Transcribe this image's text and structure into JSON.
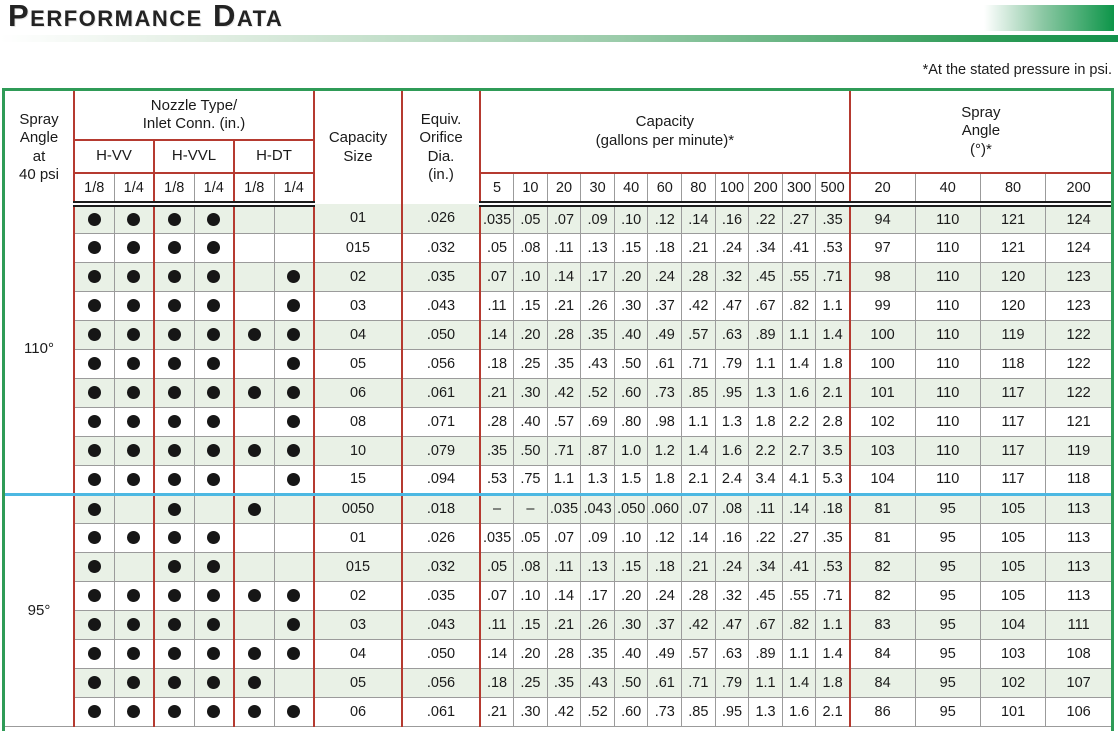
{
  "page": {
    "title": "Performance Data",
    "note": "*At the stated pressure in psi."
  },
  "colors": {
    "accent_green": "#2f9b57",
    "gradient_green": "#0d9549",
    "rule_red": "#b53a30",
    "rule_gray": "#9b9b9b",
    "group_separator_cyan": "#4cb8e2",
    "row_shade_green": "#e9f1e6",
    "header_separator_black": "#1c1c1c"
  },
  "table": {
    "header": {
      "spray_angle": "Spray\nAngle\nat\n40 psi",
      "nozzle_group": "Nozzle Type/\nInlet Conn. (in.)",
      "nozzle_types": [
        "H-VV",
        "H-VVL",
        "H-DT"
      ],
      "inlet_sizes": [
        "1/8",
        "1/4"
      ],
      "capacity_size": "Capacity\nSize",
      "orifice": "Equiv.\nOrifice\nDia.\n(in.)",
      "capacity_group": "Capacity\n(gallons per minute)*",
      "spray_angle_group": "Spray\nAngle\n(°)*",
      "pressures": [
        "5",
        "10",
        "20",
        "30",
        "40",
        "60",
        "80",
        "100",
        "200",
        "300",
        "500"
      ],
      "angle_pressures": [
        "20",
        "40",
        "80",
        "200"
      ]
    },
    "groups": [
      {
        "angle": "110°",
        "rows": [
          {
            "dots": [
              1,
              1,
              1,
              1,
              0,
              0
            ],
            "size": "01",
            "orifice": ".026",
            "capacity": [
              ".035",
              ".05",
              ".07",
              ".09",
              ".10",
              ".12",
              ".14",
              ".16",
              ".22",
              ".27",
              ".35"
            ],
            "angles": [
              "94",
              "110",
              "121",
              "124"
            ]
          },
          {
            "dots": [
              1,
              1,
              1,
              1,
              0,
              0
            ],
            "size": "015",
            "orifice": ".032",
            "capacity": [
              ".05",
              ".08",
              ".11",
              ".13",
              ".15",
              ".18",
              ".21",
              ".24",
              ".34",
              ".41",
              ".53"
            ],
            "angles": [
              "97",
              "110",
              "121",
              "124"
            ]
          },
          {
            "dots": [
              1,
              1,
              1,
              1,
              0,
              1
            ],
            "size": "02",
            "orifice": ".035",
            "capacity": [
              ".07",
              ".10",
              ".14",
              ".17",
              ".20",
              ".24",
              ".28",
              ".32",
              ".45",
              ".55",
              ".71"
            ],
            "angles": [
              "98",
              "110",
              "120",
              "123"
            ]
          },
          {
            "dots": [
              1,
              1,
              1,
              1,
              0,
              1
            ],
            "size": "03",
            "orifice": ".043",
            "capacity": [
              ".11",
              ".15",
              ".21",
              ".26",
              ".30",
              ".37",
              ".42",
              ".47",
              ".67",
              ".82",
              "1.1"
            ],
            "angles": [
              "99",
              "110",
              "120",
              "123"
            ]
          },
          {
            "dots": [
              1,
              1,
              1,
              1,
              1,
              1
            ],
            "size": "04",
            "orifice": ".050",
            "capacity": [
              ".14",
              ".20",
              ".28",
              ".35",
              ".40",
              ".49",
              ".57",
              ".63",
              ".89",
              "1.1",
              "1.4"
            ],
            "angles": [
              "100",
              "110",
              "119",
              "122"
            ]
          },
          {
            "dots": [
              1,
              1,
              1,
              1,
              0,
              1
            ],
            "size": "05",
            "orifice": ".056",
            "capacity": [
              ".18",
              ".25",
              ".35",
              ".43",
              ".50",
              ".61",
              ".71",
              ".79",
              "1.1",
              "1.4",
              "1.8"
            ],
            "angles": [
              "100",
              "110",
              "118",
              "122"
            ]
          },
          {
            "dots": [
              1,
              1,
              1,
              1,
              1,
              1
            ],
            "size": "06",
            "orifice": ".061",
            "capacity": [
              ".21",
              ".30",
              ".42",
              ".52",
              ".60",
              ".73",
              ".85",
              ".95",
              "1.3",
              "1.6",
              "2.1"
            ],
            "angles": [
              "101",
              "110",
              "117",
              "122"
            ]
          },
          {
            "dots": [
              1,
              1,
              1,
              1,
              0,
              1
            ],
            "size": "08",
            "orifice": ".071",
            "capacity": [
              ".28",
              ".40",
              ".57",
              ".69",
              ".80",
              ".98",
              "1.1",
              "1.3",
              "1.8",
              "2.2",
              "2.8"
            ],
            "angles": [
              "102",
              "110",
              "117",
              "121"
            ]
          },
          {
            "dots": [
              1,
              1,
              1,
              1,
              1,
              1
            ],
            "size": "10",
            "orifice": ".079",
            "capacity": [
              ".35",
              ".50",
              ".71",
              ".87",
              "1.0",
              "1.2",
              "1.4",
              "1.6",
              "2.2",
              "2.7",
              "3.5"
            ],
            "angles": [
              "103",
              "110",
              "117",
              "119"
            ]
          },
          {
            "dots": [
              1,
              1,
              1,
              1,
              0,
              1
            ],
            "size": "15",
            "orifice": ".094",
            "capacity": [
              ".53",
              ".75",
              "1.1",
              "1.3",
              "1.5",
              "1.8",
              "2.1",
              "2.4",
              "3.4",
              "4.1",
              "5.3"
            ],
            "angles": [
              "104",
              "110",
              "117",
              "118"
            ]
          }
        ]
      },
      {
        "angle": "95°",
        "rows": [
          {
            "dots": [
              1,
              0,
              1,
              0,
              1,
              0
            ],
            "size": "0050",
            "orifice": ".018",
            "capacity": [
              "–",
              "–",
              ".035",
              ".043",
              ".050",
              ".060",
              ".07",
              ".08",
              ".11",
              ".14",
              ".18"
            ],
            "angles": [
              "81",
              "95",
              "105",
              "113"
            ]
          },
          {
            "dots": [
              1,
              1,
              1,
              1,
              0,
              0
            ],
            "size": "01",
            "orifice": ".026",
            "capacity": [
              ".035",
              ".05",
              ".07",
              ".09",
              ".10",
              ".12",
              ".14",
              ".16",
              ".22",
              ".27",
              ".35"
            ],
            "angles": [
              "81",
              "95",
              "105",
              "113"
            ]
          },
          {
            "dots": [
              1,
              0,
              1,
              1,
              0,
              0
            ],
            "size": "015",
            "orifice": ".032",
            "capacity": [
              ".05",
              ".08",
              ".11",
              ".13",
              ".15",
              ".18",
              ".21",
              ".24",
              ".34",
              ".41",
              ".53"
            ],
            "angles": [
              "82",
              "95",
              "105",
              "113"
            ]
          },
          {
            "dots": [
              1,
              1,
              1,
              1,
              1,
              1
            ],
            "size": "02",
            "orifice": ".035",
            "capacity": [
              ".07",
              ".10",
              ".14",
              ".17",
              ".20",
              ".24",
              ".28",
              ".32",
              ".45",
              ".55",
              ".71"
            ],
            "angles": [
              "82",
              "95",
              "105",
              "113"
            ]
          },
          {
            "dots": [
              1,
              1,
              1,
              1,
              0,
              1
            ],
            "size": "03",
            "orifice": ".043",
            "capacity": [
              ".11",
              ".15",
              ".21",
              ".26",
              ".30",
              ".37",
              ".42",
              ".47",
              ".67",
              ".82",
              "1.1"
            ],
            "angles": [
              "83",
              "95",
              "104",
              "111"
            ]
          },
          {
            "dots": [
              1,
              1,
              1,
              1,
              1,
              1
            ],
            "size": "04",
            "orifice": ".050",
            "capacity": [
              ".14",
              ".20",
              ".28",
              ".35",
              ".40",
              ".49",
              ".57",
              ".63",
              ".89",
              "1.1",
              "1.4"
            ],
            "angles": [
              "84",
              "95",
              "103",
              "108"
            ]
          },
          {
            "dots": [
              1,
              1,
              1,
              1,
              1,
              0
            ],
            "size": "05",
            "orifice": ".056",
            "capacity": [
              ".18",
              ".25",
              ".35",
              ".43",
              ".50",
              ".61",
              ".71",
              ".79",
              "1.1",
              "1.4",
              "1.8"
            ],
            "angles": [
              "84",
              "95",
              "102",
              "107"
            ]
          },
          {
            "dots": [
              1,
              1,
              1,
              1,
              1,
              1
            ],
            "size": "06",
            "orifice": ".061",
            "capacity": [
              ".21",
              ".30",
              ".42",
              ".52",
              ".60",
              ".73",
              ".85",
              ".95",
              "1.3",
              "1.6",
              "2.1"
            ],
            "angles": [
              "86",
              "95",
              "101",
              "106"
            ]
          }
        ]
      }
    ]
  }
}
